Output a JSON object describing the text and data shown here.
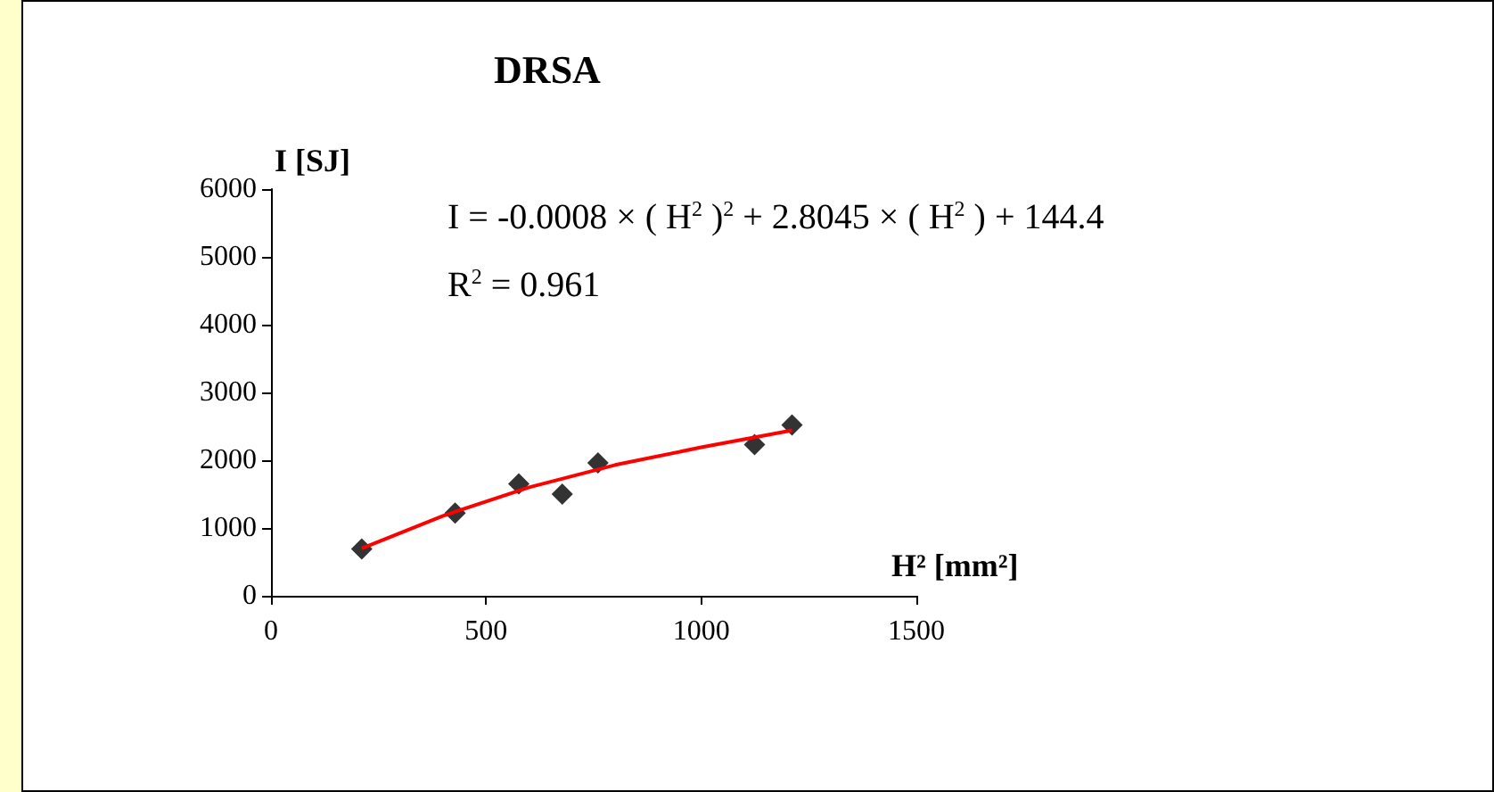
{
  "chart_data": {
    "type": "scatter",
    "title": "DRSA",
    "xlabel": "H² [mm²]",
    "ylabel": "I [SJ]",
    "annotations": [
      "I = -0.0008 × ( H$^{2}$ )$^{2}$ + 2.8045 × ( H$^{2}$ ) + 144.4",
      "R$^{2}$ = 0.961"
    ],
    "marker": "diamond",
    "grid": false,
    "xlim": [
      0,
      1500
    ],
    "xticks": [
      0,
      500,
      1000,
      1500
    ],
    "ylim": [
      0,
      6000
    ],
    "yticks": [
      0,
      1000,
      2000,
      3000,
      4000,
      5000,
      6000
    ],
    "series": [
      {
        "color": "#000000",
        "x": [
          211,
          428,
          576,
          677,
          760,
          1124,
          1211
        ],
        "values": [
          690,
          1220,
          1650,
          1500,
          1960,
          2230,
          2520
        ]
      },
      {
        "type": "line",
        "color": "#ff0000",
        "marker": "none",
        "x": [
          211,
          400,
          600,
          800,
          1000,
          1211
        ],
        "values": [
          700,
          1180,
          1600,
          1930,
          2190,
          2440
        ]
      }
    ]
  }
}
